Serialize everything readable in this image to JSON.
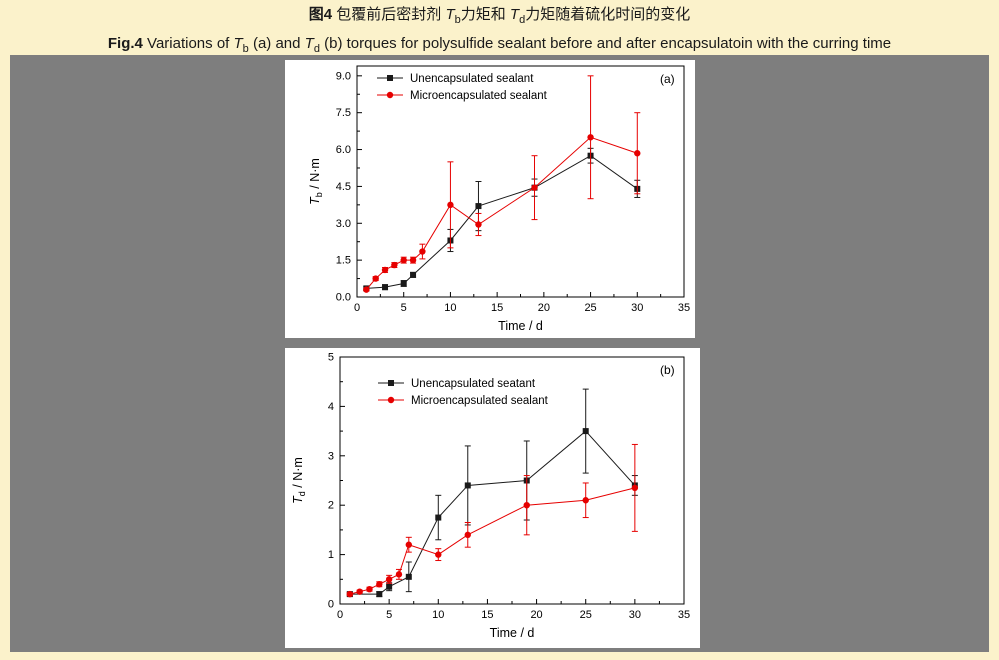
{
  "caption": {
    "cn": {
      "fig": "图4",
      "seg1": " 包覆前后密封剂 ",
      "t1": "T",
      "sub1": "b",
      "seg2": "力矩和 ",
      "t2": "T",
      "sub2": "d",
      "seg3": "力矩随着硫化时间的变化"
    },
    "en": {
      "fig": "Fig.4",
      "seg1": " Variations of ",
      "t1": "T",
      "sub1": "b",
      "seg2": " (a) and ",
      "t2": "T",
      "sub2": "d",
      "seg3": " (b) torques for polysulfide sealant before and after encapsulatoin with the curring time"
    }
  },
  "colors": {
    "banner_bg": "#fbf2cb",
    "figure_bg": "#7e7e7e",
    "panel_bg": "#ffffff",
    "series_black": "#1a1a1a",
    "series_red": "#e60000"
  },
  "chart_data": [
    {
      "type": "line",
      "panel_label": "(a)",
      "xlabel": "Time / d",
      "ylabel": {
        "t": "T",
        "sub": "b",
        "rest": " / N·m"
      },
      "xlim": [
        0,
        35
      ],
      "xticks": [
        0,
        5,
        10,
        15,
        20,
        25,
        30,
        35
      ],
      "ylim": [
        0,
        9.4
      ],
      "yticks": [
        0,
        1.5,
        3,
        4.5,
        6,
        7.5,
        9
      ],
      "ytick_labels": [
        "0.0",
        "1.5",
        "3.0",
        "4.5",
        "6.0",
        "7.5",
        "9.0"
      ],
      "grid": false,
      "legend_position": "top-left",
      "legend_offset": [
        20,
        12
      ],
      "series": [
        {
          "name": "Unencapsulated sealant",
          "color": "#1a1a1a",
          "marker": "square",
          "x": [
            1,
            3,
            5,
            6,
            10,
            13,
            19,
            25,
            30
          ],
          "y": [
            0.35,
            0.4,
            0.55,
            0.9,
            2.3,
            3.7,
            4.45,
            5.75,
            4.4
          ],
          "yerr": [
            0.08,
            0.1,
            0.12,
            0.1,
            0.45,
            1.0,
            0.35,
            0.3,
            0.35
          ]
        },
        {
          "name": "Microencapsulated sealant",
          "color": "#e60000",
          "marker": "circle",
          "x": [
            1,
            2,
            3,
            4,
            5,
            6,
            7,
            10,
            13,
            19,
            25,
            30
          ],
          "y": [
            0.3,
            0.75,
            1.1,
            1.3,
            1.5,
            1.5,
            1.85,
            3.75,
            2.95,
            4.45,
            6.5,
            5.85
          ],
          "yerr": [
            0.05,
            0.08,
            0.1,
            0.1,
            0.12,
            0.12,
            0.3,
            1.75,
            0.45,
            1.3,
            2.5,
            1.65
          ]
        }
      ]
    },
    {
      "type": "line",
      "panel_label": "(b)",
      "xlabel": "Time / d",
      "ylabel": {
        "t": "T",
        "sub": "d",
        "rest": " / N·m"
      },
      "xlim": [
        0,
        35
      ],
      "xticks": [
        0,
        5,
        10,
        15,
        20,
        25,
        30,
        35
      ],
      "ylim": [
        0,
        5
      ],
      "yticks": [
        0,
        1,
        2,
        3,
        4,
        5
      ],
      "ytick_labels": [
        "0",
        "1",
        "2",
        "3",
        "4",
        "5"
      ],
      "grid": false,
      "legend_position": "top-left",
      "legend_offset": [
        38,
        26
      ],
      "series": [
        {
          "name": "Unencapsulated seatant",
          "color": "#1a1a1a",
          "marker": "square",
          "x": [
            1,
            4,
            5,
            7,
            10,
            13,
            19,
            25,
            30
          ],
          "y": [
            0.2,
            0.2,
            0.35,
            0.55,
            1.75,
            2.4,
            2.5,
            3.5,
            2.4
          ],
          "yerr": [
            0.04,
            0.05,
            0.08,
            0.3,
            0.45,
            0.8,
            0.8,
            0.85,
            0.2
          ]
        },
        {
          "name": "Microencapsulated sealant",
          "color": "#e60000",
          "marker": "circle",
          "x": [
            1,
            2,
            3,
            4,
            5,
            6,
            7,
            10,
            13,
            19,
            25,
            30
          ],
          "y": [
            0.2,
            0.25,
            0.3,
            0.4,
            0.5,
            0.6,
            1.2,
            1.0,
            1.4,
            2.0,
            2.1,
            2.35
          ],
          "yerr": [
            0.03,
            0.03,
            0.04,
            0.05,
            0.08,
            0.1,
            0.15,
            0.12,
            0.25,
            0.6,
            0.35,
            0.88
          ]
        }
      ]
    }
  ]
}
